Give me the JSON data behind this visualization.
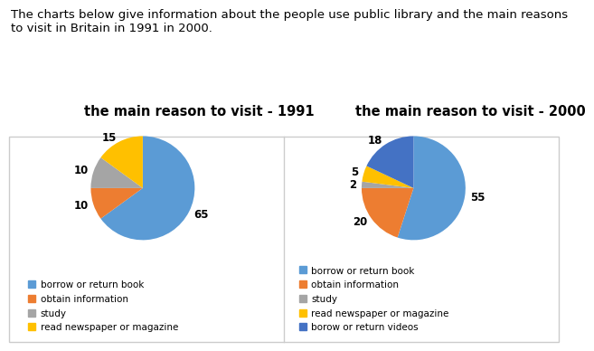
{
  "title_text": "The charts below give information about the people use public library and the main reasons\nto visit in Britain in 1991 in 2000.",
  "chart1_title": "the main reason to visit - 1991",
  "chart2_title": "the main reason to visit - 2000",
  "chart1_values": [
    65,
    10,
    10,
    15
  ],
  "chart2_values": [
    55,
    20,
    2,
    5,
    18
  ],
  "chart1_labels": [
    "65",
    "10",
    "10",
    "15"
  ],
  "chart2_labels": [
    "55",
    "20",
    "2",
    "5",
    "18"
  ],
  "chart1_colors": [
    "#5B9BD5",
    "#ED7D31",
    "#A5A5A5",
    "#FFC000"
  ],
  "chart2_colors": [
    "#5B9BD5",
    "#ED7D31",
    "#A5A5A5",
    "#FFC000",
    "#4472C4"
  ],
  "legend_labels_1": [
    "borrow or return book",
    "obtain information",
    "study",
    "read newspaper or magazine"
  ],
  "legend_labels_2": [
    "borrow or return book",
    "obtain information",
    "study",
    "read newspaper or magazine",
    "borow or return videos"
  ],
  "chart1_startangle": 90,
  "chart2_startangle": 90,
  "bg_color": "#FFFFFF",
  "border_color": "#CCCCCC",
  "text_color": "#000000",
  "title_fontsize": 9.5,
  "chart_title_fontsize": 10.5,
  "legend_fontsize": 7.5
}
